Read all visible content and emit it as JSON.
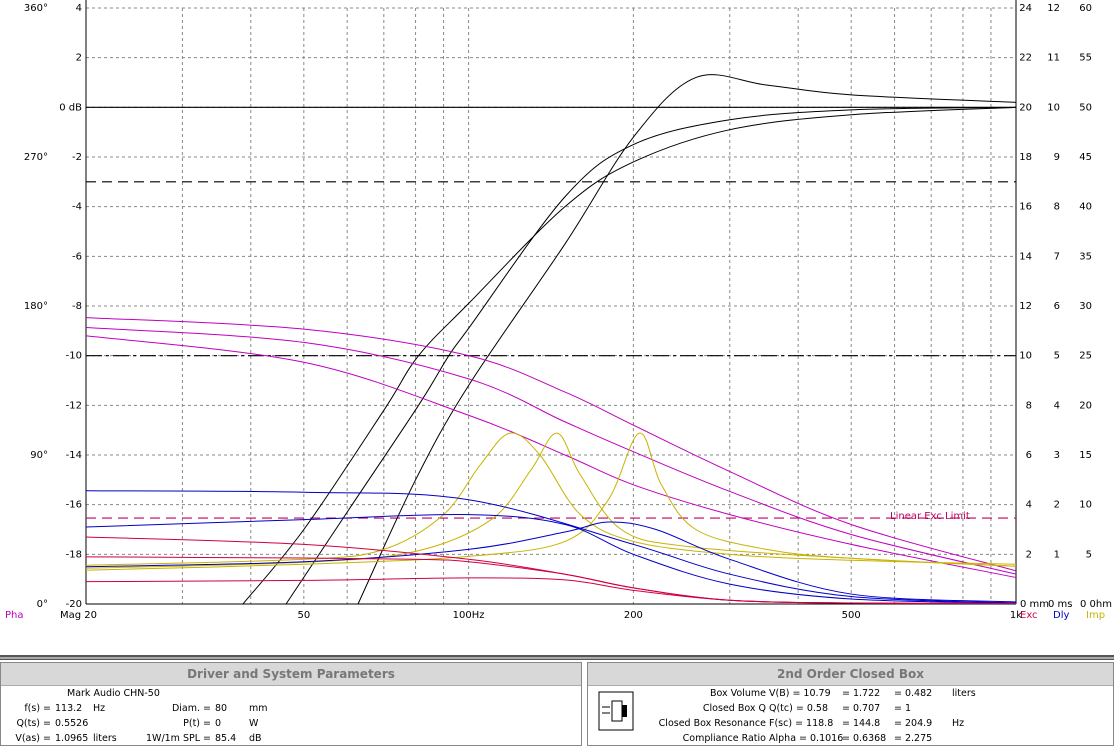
{
  "plot": {
    "x_axis": {
      "lim": [
        20,
        1000
      ],
      "ticks": [
        {
          "value": 20,
          "label": "Mag 20"
        },
        50,
        {
          "value": 100,
          "label": "100Hz"
        },
        200,
        500,
        {
          "value": 1000,
          "label": "1k"
        }
      ],
      "grid": [
        30,
        40,
        50,
        60,
        70,
        80,
        90,
        100,
        200,
        300,
        400,
        500,
        600,
        700,
        800,
        900
      ]
    },
    "axes": {
      "mag": {
        "lim": [
          -20,
          4
        ],
        "ticks": [
          4,
          2,
          {
            "value": 0,
            "label": "0 dB"
          },
          -2,
          -4,
          -6,
          -8,
          -10,
          -12,
          -14,
          -16,
          -18,
          -20
        ]
      },
      "phase": {
        "name": "Pha",
        "color": "#c000c0",
        "lim": [
          0,
          360
        ],
        "ticks": [
          {
            "value": 360,
            "label": "360°"
          },
          {
            "value": 270,
            "label": "270°"
          },
          {
            "value": 180,
            "label": "180°"
          },
          {
            "value": 90,
            "label": "90°"
          },
          {
            "value": 0,
            "label": "0°"
          }
        ]
      },
      "exc": {
        "name": "Exc",
        "color": "#d00040",
        "lim": [
          0,
          24
        ],
        "ticks": [
          24,
          22,
          20,
          18,
          16,
          14,
          12,
          10,
          8,
          6,
          4,
          2,
          {
            "value": 0,
            "label": "0 mm"
          }
        ]
      },
      "dly": {
        "name": "Dly",
        "color": "#0000c8",
        "lim": [
          0,
          12
        ],
        "ticks": [
          12,
          11,
          10,
          9,
          8,
          7,
          6,
          5,
          4,
          3,
          2,
          1,
          {
            "value": 0,
            "label": "0 ms"
          }
        ]
      },
      "imp": {
        "name": "Imp",
        "color": "#c8b400",
        "lim": [
          0,
          60
        ],
        "ticks": [
          60,
          55,
          50,
          45,
          40,
          35,
          30,
          25,
          20,
          15,
          10,
          5,
          {
            "value": 0,
            "label": "0 0hm"
          }
        ]
      }
    },
    "reference_lines": [
      {
        "axis": "mag",
        "value": 0,
        "style": "solid",
        "color": "#000000"
      },
      {
        "axis": "mag",
        "value": -3,
        "style": "dashed",
        "color": "#000000"
      },
      {
        "axis": "mag",
        "value": -10,
        "style": "dashdot",
        "color": "#000000"
      },
      {
        "axis": "exc",
        "value": 3.46,
        "style": "dashed",
        "color": "#c00060",
        "label": "Linear Exc Limit"
      }
    ],
    "curves": [
      {
        "axis": "mag",
        "color": "#000000",
        "x": [
          38.7,
          50,
          70,
          81,
          100,
          150,
          200,
          300,
          500,
          1000
        ],
        "values": [
          -20,
          -17,
          -12.2,
          -10,
          -7.9,
          -4.0,
          -2.2,
          -0.9,
          -0.3,
          0
        ]
      },
      {
        "axis": "mag",
        "color": "#000000",
        "x": [
          46.4,
          60,
          81,
          92,
          100,
          150,
          200,
          300,
          500,
          1000
        ],
        "values": [
          -20,
          -16.3,
          -12,
          -10,
          -8.9,
          -3.6,
          -1.5,
          -0.5,
          -0.1,
          0
        ]
      },
      {
        "axis": "mag",
        "color": "#000000",
        "x": [
          62.8,
          80,
          100,
          150,
          200,
          260,
          350,
          500,
          1000
        ],
        "values": [
          -20,
          -15,
          -11.2,
          -5.5,
          -1.2,
          1.2,
          0.9,
          0.5,
          0.2
        ]
      },
      {
        "axis": "phase",
        "color": "#c000c0",
        "x": [
          20,
          50,
          100,
          150,
          200,
          300,
          500,
          1000
        ],
        "values": [
          173,
          166,
          150,
          128,
          108,
          80,
          48,
          20
        ]
      },
      {
        "axis": "phase",
        "color": "#c000c0",
        "x": [
          20,
          50,
          100,
          150,
          200,
          300,
          500,
          1000
        ],
        "values": [
          167,
          158,
          136,
          110,
          92,
          68,
          42,
          18
        ]
      },
      {
        "axis": "phase",
        "color": "#c000c0",
        "x": [
          20,
          50,
          100,
          150,
          200,
          300,
          500,
          1000
        ],
        "values": [
          162,
          146,
          114,
          90,
          72,
          54,
          36,
          16
        ]
      },
      {
        "axis": "imp",
        "color": "#c8b400",
        "x": [
          20,
          50,
          70,
          90,
          105,
          119,
          135,
          160,
          200,
          300,
          500,
          1000
        ],
        "values": [
          3.9,
          4.5,
          5.5,
          9,
          14,
          17.2,
          15,
          9,
          6.3,
          5.0,
          4.4,
          4.0
        ]
      },
      {
        "axis": "imp",
        "color": "#c8b400",
        "x": [
          20,
          50,
          80,
          110,
          130,
          145,
          160,
          190,
          250,
          500,
          1000
        ],
        "values": [
          3.6,
          4.2,
          5.3,
          8.5,
          13.5,
          17.2,
          13,
          7.5,
          5.8,
          4.6,
          3.8
        ]
      },
      {
        "axis": "imp",
        "color": "#c8b400",
        "x": [
          20,
          50,
          100,
          150,
          180,
          205,
          225,
          260,
          350,
          500,
          1000
        ],
        "values": [
          3.4,
          4.0,
          4.8,
          6.3,
          10.5,
          17.2,
          12,
          7.5,
          5.5,
          4.6,
          3.8
        ]
      },
      {
        "axis": "dly",
        "color": "#0000c8",
        "x": [
          20,
          50,
          100,
          200,
          300,
          500,
          1000
        ],
        "values": [
          2.28,
          2.25,
          2.1,
          1.2,
          0.6,
          0.15,
          0.02
        ]
      },
      {
        "axis": "dly",
        "color": "#0000c8",
        "x": [
          20,
          50,
          100,
          150,
          200,
          300,
          500,
          1000
        ],
        "values": [
          1.55,
          1.7,
          1.8,
          1.6,
          1.0,
          0.4,
          0.1,
          0.02
        ]
      },
      {
        "axis": "dly",
        "color": "#0000c8",
        "x": [
          20,
          50,
          100,
          150,
          180,
          220,
          300,
          500,
          1000
        ],
        "values": [
          0.75,
          0.85,
          1.1,
          1.45,
          1.65,
          1.5,
          0.9,
          0.2,
          0.04
        ]
      },
      {
        "axis": "exc",
        "color": "#d00040",
        "x": [
          20,
          50,
          100,
          150,
          200,
          300,
          500,
          1000
        ],
        "values": [
          2.7,
          2.4,
          1.8,
          1.2,
          0.65,
          0.15,
          0.04,
          0.02
        ]
      },
      {
        "axis": "exc",
        "color": "#d00040",
        "x": [
          20,
          50,
          80,
          100,
          150,
          200,
          300,
          500,
          1000
        ],
        "values": [
          1.9,
          1.85,
          1.8,
          1.7,
          1.2,
          0.65,
          0.15,
          0.04,
          0.02
        ]
      },
      {
        "axis": "exc",
        "color": "#d00040",
        "x": [
          20,
          50,
          100,
          150,
          200,
          300,
          500,
          1000
        ],
        "values": [
          0.9,
          0.95,
          1.05,
          0.97,
          0.55,
          0.15,
          0.04,
          0.02
        ]
      }
    ]
  },
  "driver_panel": {
    "title": "Driver and System Parameters",
    "driver": "Mark Audio CHN-50",
    "rows": [
      [
        [
          "f(s) =",
          "113.2",
          "Hz"
        ],
        [
          "Diam. =",
          "80",
          "mm"
        ]
      ],
      [
        [
          "Q(ts) =",
          "0.5526",
          ""
        ],
        [
          "P(t) =",
          "0",
          "W"
        ]
      ],
      [
        [
          "V(as) =",
          "1.0965",
          "liters"
        ],
        [
          "1W/1m SPL =",
          "85.4",
          "dB"
        ]
      ]
    ]
  },
  "box_panel": {
    "title": "2nd Order Closed Box",
    "rows": [
      [
        "Box Volume",
        "V(B) = 10.79",
        "= 1.722",
        "= 0.482",
        "liters"
      ],
      [
        "Closed Box Q",
        "Q(tc) = 0.58",
        "= 0.707",
        "= 1",
        ""
      ],
      [
        "Closed Box Resonance",
        "F(sc) = 118.8",
        "= 144.8",
        "= 204.9",
        "Hz"
      ],
      [
        "Compliance Ratio",
        "Alpha = 0.1016",
        "= 0.6368",
        "= 2.275",
        ""
      ]
    ]
  }
}
